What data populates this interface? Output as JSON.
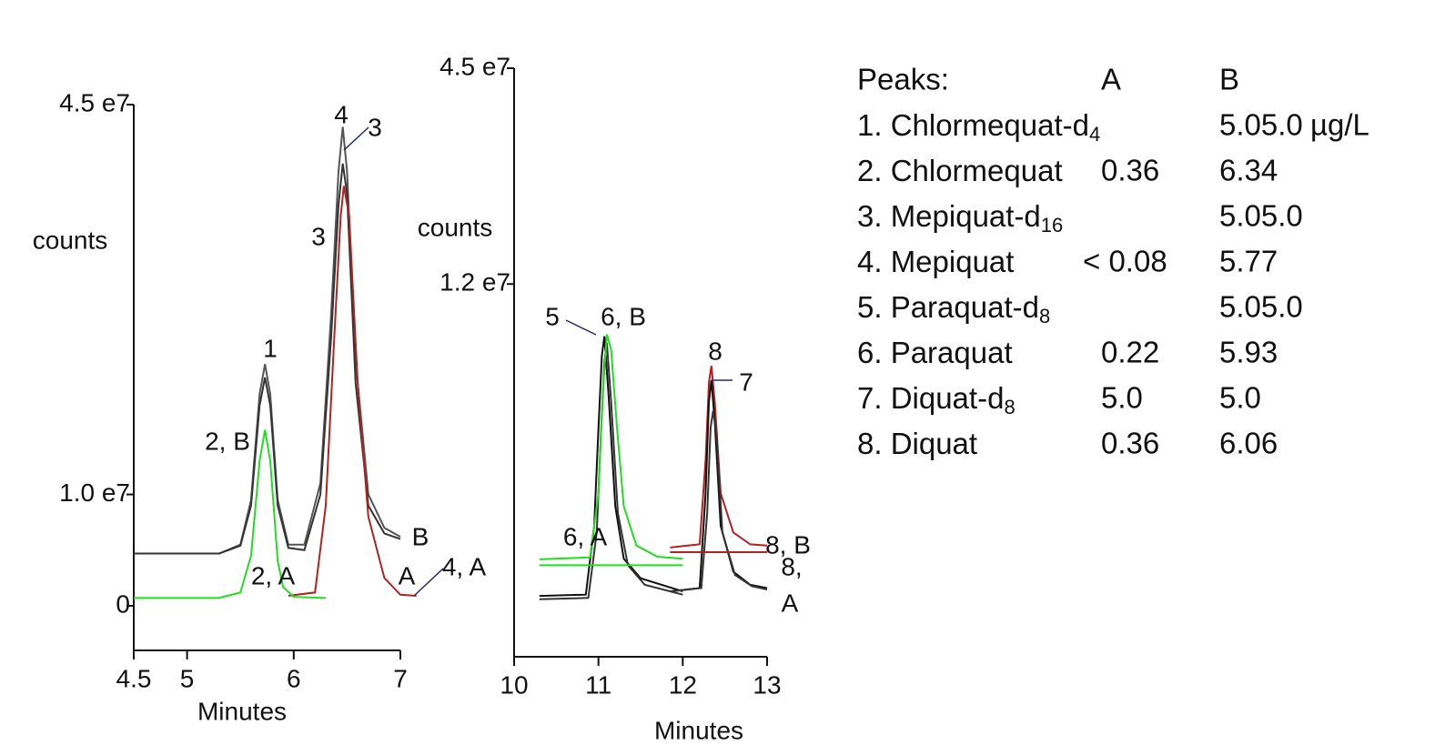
{
  "chart_data": [
    {
      "type": "line",
      "ylabel": "counts",
      "xlabel": "Minutes",
      "xlim": [
        4.5,
        7
      ],
      "xticks": [
        4.5,
        5,
        6,
        7
      ],
      "ylim": [
        -0.4,
        4.5
      ],
      "yticks": [
        {
          "value": 4.5,
          "label": "4.5 e7"
        },
        {
          "value": 1.0,
          "label": "1.0 e7"
        },
        0
      ],
      "series": [
        {
          "color": "#555555",
          "x": [
            4.5,
            5.3,
            5.5,
            5.6,
            5.68,
            5.73,
            5.78,
            5.85,
            5.95,
            6.1,
            6.25,
            6.35,
            6.42,
            6.46,
            6.5,
            6.58,
            6.7,
            6.85,
            7.0
          ],
          "values": [
            0.47,
            0.47,
            0.55,
            0.95,
            1.9,
            2.17,
            1.9,
            0.95,
            0.55,
            0.55,
            1.1,
            2.6,
            3.9,
            4.3,
            3.9,
            2.2,
            1.0,
            0.7,
            0.62
          ]
        },
        {
          "color": "#333333",
          "x": [
            4.5,
            5.3,
            5.5,
            5.6,
            5.68,
            5.73,
            5.78,
            5.85,
            5.95,
            6.1,
            6.25,
            6.35,
            6.42,
            6.46,
            6.5,
            6.58,
            6.7,
            6.85,
            7.0
          ],
          "values": [
            0.47,
            0.47,
            0.54,
            0.9,
            1.8,
            2.05,
            1.8,
            0.9,
            0.52,
            0.5,
            1.0,
            2.4,
            3.6,
            3.97,
            3.7,
            2.0,
            0.9,
            0.65,
            0.6
          ]
        },
        {
          "color": "#b22222",
          "x": [
            5.95,
            6.2,
            6.3,
            6.38,
            6.44,
            6.47,
            6.52,
            6.6,
            6.7,
            6.85,
            7.0,
            7.15
          ],
          "values": [
            0.09,
            0.12,
            0.9,
            2.4,
            3.5,
            3.77,
            3.5,
            2.0,
            0.8,
            0.25,
            0.1,
            0.09
          ]
        },
        {
          "color": "#22dd22",
          "x": [
            4.5,
            5.3,
            5.5,
            5.6,
            5.68,
            5.73,
            5.78,
            5.85,
            5.9,
            6.0,
            6.3
          ],
          "values": [
            0.07,
            0.07,
            0.12,
            0.45,
            1.3,
            1.58,
            1.3,
            0.4,
            0.17,
            0.08,
            0.07
          ]
        }
      ],
      "annotations": [
        "1",
        "4",
        "3",
        "3",
        "2, B",
        "2, A",
        "B",
        "A",
        "4, A"
      ]
    },
    {
      "type": "line",
      "ylabel": "counts",
      "xlabel": "Minutes",
      "xlim": [
        10,
        13
      ],
      "xticks": [
        10,
        11,
        12,
        13
      ],
      "ylim": [
        -4.5,
        4.5
      ],
      "yticks": [
        {
          "value": 4.5,
          "label": "4.5 e7"
        },
        {
          "value": 1.2,
          "label": "1.2 e7"
        }
      ],
      "series": [
        {
          "color": "#111111",
          "x": [
            10.3,
            10.85,
            10.95,
            11.0,
            11.04,
            11.07,
            11.12,
            11.2,
            11.3,
            11.5,
            12.0
          ],
          "values": [
            -3.57,
            -3.55,
            -2.5,
            -1.0,
            0.1,
            0.4,
            -0.5,
            -2.2,
            -3.0,
            -3.3,
            -3.5
          ]
        },
        {
          "color": "#333333",
          "x": [
            10.3,
            10.88,
            10.98,
            11.03,
            11.07,
            11.1,
            11.15,
            11.23,
            11.35,
            11.55,
            12.0
          ],
          "values": [
            -3.62,
            -3.6,
            -2.6,
            -1.1,
            0.0,
            0.3,
            -0.6,
            -2.3,
            -3.1,
            -3.4,
            -3.55
          ]
        },
        {
          "color": "#22dd22",
          "x": [
            10.3,
            10.9,
            11.0,
            11.05,
            11.1,
            11.15,
            11.22,
            11.3,
            11.45,
            11.7,
            12.0
          ],
          "values": [
            -3.01,
            -2.98,
            -2.0,
            -0.5,
            0.43,
            0.2,
            -1.0,
            -2.2,
            -2.8,
            -2.97,
            -3.0
          ]
        },
        {
          "color": "#22dd22",
          "x": [
            10.3,
            12.0
          ],
          "values": [
            -3.1,
            -3.1
          ]
        },
        {
          "color": "#b22222",
          "x": [
            11.85,
            12.2,
            12.27,
            12.31,
            12.34,
            12.38,
            12.45,
            12.6,
            12.8,
            13.0
          ],
          "values": [
            -2.83,
            -2.78,
            -1.5,
            -0.3,
            -0.05,
            -0.6,
            -2.0,
            -2.6,
            -2.78,
            -2.8
          ]
        },
        {
          "color": "#111111",
          "x": [
            11.85,
            12.2,
            12.27,
            12.31,
            12.34,
            12.38,
            12.45,
            12.6,
            12.8,
            13.0
          ],
          "values": [
            -3.5,
            -3.45,
            -2.0,
            -0.6,
            -0.27,
            -0.9,
            -2.5,
            -3.2,
            -3.4,
            -3.45
          ]
        },
        {
          "color": "#333333",
          "x": [
            11.85,
            12.22,
            12.29,
            12.33,
            12.36,
            12.4,
            12.47,
            12.62,
            12.82,
            13.0
          ],
          "values": [
            -3.5,
            -3.45,
            -2.3,
            -1.0,
            -0.74,
            -1.1,
            -2.6,
            -3.25,
            -3.42,
            -3.47
          ]
        },
        {
          "color": "#b22222",
          "x": [
            11.85,
            13.0
          ],
          "values": [
            -2.9,
            -2.9
          ]
        }
      ],
      "annotations": [
        "5",
        "6, B",
        "8",
        "7",
        "6, A",
        "8, B",
        "8,",
        "A"
      ]
    }
  ],
  "peaks_table": {
    "header": [
      "Peaks:",
      "A",
      "B"
    ],
    "rows": [
      {
        "name": "1. Chlormequat-d",
        "sub": "4",
        "B": "5.05.0",
        "unit": "µg/L"
      },
      {
        "name": "2. Chlormequat",
        "A": "0.36",
        "B": "6.34"
      },
      {
        "name": "3. Mepiquat-d",
        "sub": "16",
        "B": "5.05.0"
      },
      {
        "name": "4. Mepiquat",
        "A": "< 0.08",
        "B": "5.77"
      },
      {
        "name": "5. Paraquat-d",
        "sub": "8",
        "B": "5.05.0"
      },
      {
        "name": "6. Paraquat",
        "A": "0.22",
        "B": "5.93"
      },
      {
        "name": "7. Diquat-d",
        "sub": "8",
        "A": "5.0",
        "B": "5.0"
      },
      {
        "name": "8. Diquat",
        "A": "0.36",
        "B": "6.06"
      }
    ]
  }
}
